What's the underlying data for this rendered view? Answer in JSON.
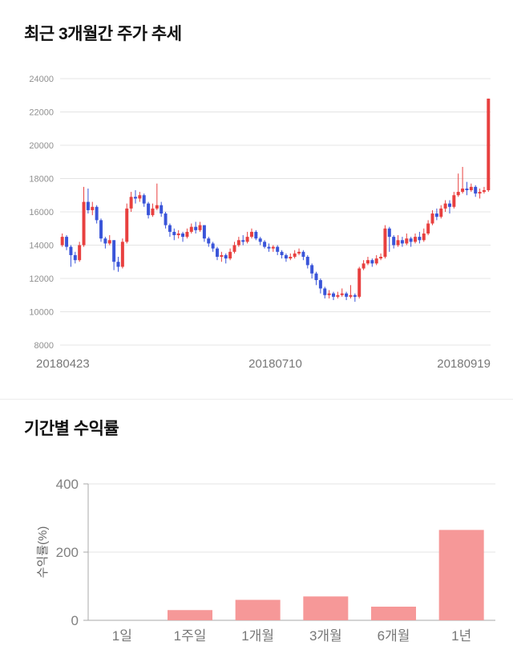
{
  "sections": {
    "price_trend": {
      "title": "최근 3개월간 주가 추세"
    },
    "returns": {
      "title": "기간별 수익률"
    }
  },
  "chart_data": [
    {
      "type": "candlestick",
      "title": "최근 3개월간 주가 추세",
      "ylim": [
        8000,
        24000
      ],
      "ytick_step": 2000,
      "ytick_labels": [
        "8000",
        "10000",
        "12000",
        "14000",
        "16000",
        "18000",
        "20000",
        "22000",
        "24000"
      ],
      "x_labels": [
        "20180423",
        "20180710",
        "20180919"
      ],
      "grid": true,
      "up_color": "#e8403f",
      "down_color": "#3a55d9",
      "grid_color": "#e4e4e4",
      "tick_color": "#909090",
      "xlabel_color": "#777777",
      "candles": [
        [
          14000,
          14700,
          13900,
          14500
        ],
        [
          14500,
          14600,
          13700,
          13900
        ],
        [
          13900,
          14000,
          12700,
          13400
        ],
        [
          13400,
          13600,
          12900,
          13100
        ],
        [
          13100,
          14200,
          13000,
          14000
        ],
        [
          14000,
          17500,
          13900,
          16600
        ],
        [
          16600,
          17400,
          15900,
          16100
        ],
        [
          16100,
          16600,
          15800,
          16300
        ],
        [
          16300,
          16400,
          15300,
          15500
        ],
        [
          15500,
          15600,
          14200,
          14400
        ],
        [
          14400,
          14500,
          13800,
          14100
        ],
        [
          14100,
          14600,
          14000,
          14300
        ],
        [
          14300,
          14300,
          12500,
          13000
        ],
        [
          13000,
          13300,
          12400,
          12700
        ],
        [
          12700,
          14400,
          12600,
          14200
        ],
        [
          14200,
          16500,
          14100,
          16200
        ],
        [
          16200,
          17200,
          16000,
          16900
        ],
        [
          16900,
          17300,
          16500,
          16800
        ],
        [
          16800,
          17200,
          16600,
          17000
        ],
        [
          17000,
          17100,
          16300,
          16500
        ],
        [
          16500,
          16600,
          15600,
          15800
        ],
        [
          15800,
          16500,
          15700,
          16200
        ],
        [
          16200,
          17700,
          16100,
          16400
        ],
        [
          16400,
          16600,
          15700,
          15900
        ],
        [
          15900,
          16000,
          15000,
          15200
        ],
        [
          15200,
          15300,
          14500,
          14800
        ],
        [
          14800,
          15000,
          14300,
          14600
        ],
        [
          14600,
          14900,
          14400,
          14700
        ],
        [
          14700,
          14800,
          14200,
          14500
        ],
        [
          14500,
          15000,
          14400,
          14800
        ],
        [
          14800,
          15300,
          14700,
          15100
        ],
        [
          15100,
          15400,
          14700,
          14900
        ],
        [
          14900,
          15400,
          14800,
          15200
        ],
        [
          15200,
          15200,
          14200,
          14400
        ],
        [
          14400,
          14500,
          13900,
          14100
        ],
        [
          14100,
          14200,
          13600,
          13800
        ],
        [
          13800,
          13900,
          13100,
          13300
        ],
        [
          13300,
          13600,
          13000,
          13400
        ],
        [
          13400,
          13500,
          12900,
          13200
        ],
        [
          13200,
          13800,
          13100,
          13600
        ],
        [
          13600,
          14200,
          13500,
          14000
        ],
        [
          14000,
          14500,
          13900,
          14300
        ],
        [
          14300,
          14600,
          14000,
          14200
        ],
        [
          14200,
          14800,
          14100,
          14500
        ],
        [
          14500,
          15000,
          14400,
          14800
        ],
        [
          14800,
          14900,
          14300,
          14400
        ],
        [
          14400,
          14500,
          14000,
          14200
        ],
        [
          14200,
          14300,
          13800,
          13900
        ],
        [
          13900,
          14100,
          13600,
          13800
        ],
        [
          13800,
          14000,
          13600,
          13900
        ],
        [
          13900,
          14000,
          13400,
          13600
        ],
        [
          13600,
          13700,
          13200,
          13400
        ],
        [
          13400,
          13500,
          13000,
          13200
        ],
        [
          13200,
          13500,
          13100,
          13300
        ],
        [
          13300,
          13700,
          13200,
          13500
        ],
        [
          13500,
          13800,
          13400,
          13600
        ],
        [
          13600,
          13700,
          13100,
          13300
        ],
        [
          13300,
          13400,
          12600,
          12800
        ],
        [
          12800,
          12900,
          12000,
          12300
        ],
        [
          12300,
          12400,
          11600,
          11900
        ],
        [
          11900,
          12000,
          11100,
          11400
        ],
        [
          11400,
          11500,
          10800,
          11000
        ],
        [
          11000,
          11300,
          10800,
          11100
        ],
        [
          11100,
          11200,
          10700,
          10900
        ],
        [
          10900,
          11200,
          10800,
          11000
        ],
        [
          11000,
          11400,
          10900,
          11100
        ],
        [
          11100,
          11200,
          10700,
          10900
        ],
        [
          10900,
          11600,
          10800,
          11000
        ],
        [
          11000,
          11100,
          10600,
          10900
        ],
        [
          10900,
          12700,
          10800,
          12600
        ],
        [
          12600,
          13100,
          12500,
          12900
        ],
        [
          12900,
          13300,
          12800,
          13100
        ],
        [
          13100,
          13200,
          12700,
          12900
        ],
        [
          12900,
          13400,
          12800,
          13200
        ],
        [
          13200,
          13500,
          13100,
          13300
        ],
        [
          13300,
          15200,
          13200,
          15000
        ],
        [
          15000,
          15100,
          13600,
          14500
        ],
        [
          14500,
          14600,
          13800,
          14000
        ],
        [
          14000,
          14600,
          13900,
          14300
        ],
        [
          14300,
          14500,
          13900,
          14100
        ],
        [
          14100,
          14700,
          14000,
          14400
        ],
        [
          14400,
          14500,
          13900,
          14200
        ],
        [
          14200,
          14700,
          14100,
          14500
        ],
        [
          14500,
          14800,
          14100,
          14300
        ],
        [
          14300,
          15000,
          14200,
          14700
        ],
        [
          14700,
          15500,
          14600,
          15300
        ],
        [
          15300,
          16100,
          15200,
          15900
        ],
        [
          15900,
          16200,
          15500,
          15700
        ],
        [
          15700,
          16400,
          15600,
          16200
        ],
        [
          16200,
          16700,
          16000,
          16500
        ],
        [
          16500,
          16700,
          15900,
          16300
        ],
        [
          16300,
          17200,
          16200,
          17000
        ],
        [
          17000,
          18300,
          16900,
          17200
        ],
        [
          17200,
          18700,
          17100,
          17400
        ],
        [
          17400,
          17800,
          17000,
          17300
        ],
        [
          17300,
          17700,
          17200,
          17500
        ],
        [
          17500,
          17600,
          16900,
          17100
        ],
        [
          17100,
          17400,
          16800,
          17200
        ],
        [
          17200,
          17500,
          17100,
          17300
        ],
        [
          17300,
          22800,
          17200,
          22800
        ]
      ]
    },
    {
      "type": "bar",
      "title": "기간별 수익률",
      "ylabel": "수익률(%)",
      "categories": [
        "1일",
        "1주일",
        "1개월",
        "3개월",
        "6개월",
        "1년"
      ],
      "values": [
        0,
        30,
        60,
        70,
        40,
        265
      ],
      "ylim": [
        0,
        400
      ],
      "yticks": [
        0,
        200,
        400
      ],
      "grid": true,
      "legend": "none",
      "bar_color": "#f69898",
      "axis_color": "#aaaaaa",
      "grid_color": "#e4e4e4",
      "tick_color": "#808080",
      "label_color": "#777777"
    }
  ]
}
